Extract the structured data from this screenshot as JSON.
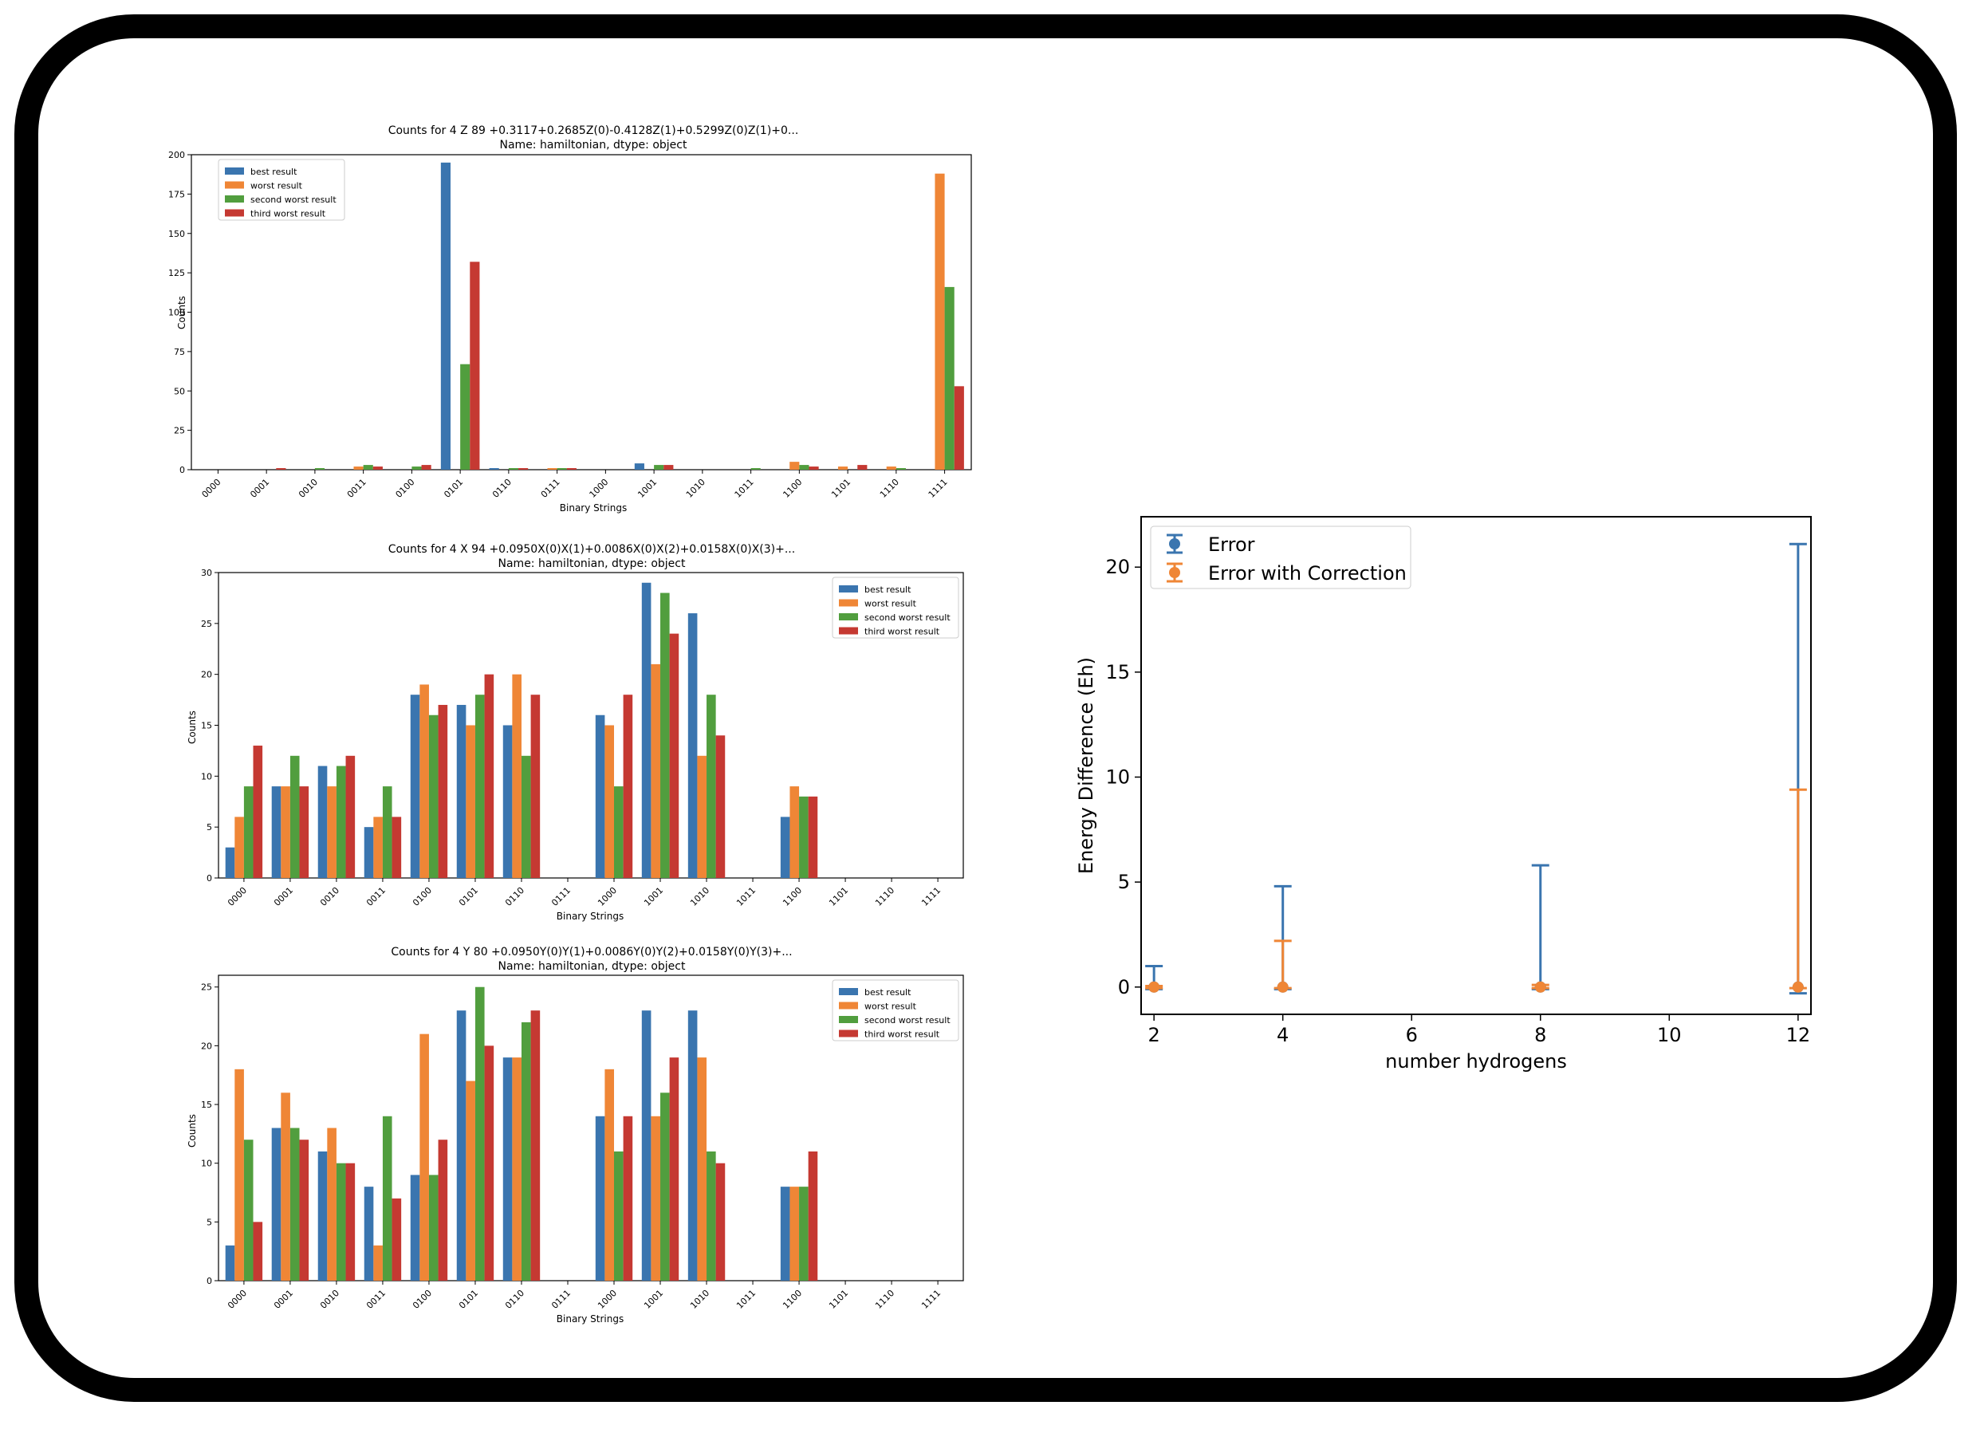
{
  "colors": {
    "best": "#3a75af",
    "worst": "#ef8636",
    "second": "#519e3e",
    "third": "#c53932",
    "error": "#3a75af",
    "corrected": "#ef8636"
  },
  "chart_data": [
    {
      "type": "bar",
      "title": "Counts for 4 Z 89    +0.3117+0.2685Z(0)-0.4128Z(1)+0.5299Z(0)Z(1)+0...",
      "subtitle": "Name: hamiltonian, dtype: object",
      "xlabel": "Binary Strings",
      "ylabel": "Counts",
      "ylim": [
        0,
        200
      ],
      "yticks": [
        0,
        25,
        50,
        75,
        100,
        125,
        150,
        175,
        200
      ],
      "legend_position": "upper left",
      "categories": [
        "0000",
        "0001",
        "0010",
        "0011",
        "0100",
        "0101",
        "0110",
        "0111",
        "1000",
        "1001",
        "1010",
        "1011",
        "1100",
        "1101",
        "1110",
        "1111"
      ],
      "series": [
        {
          "name": "best result",
          "values": [
            0,
            0,
            0,
            0,
            0,
            195,
            1,
            0,
            0,
            4,
            0,
            0,
            0,
            0,
            0,
            0
          ]
        },
        {
          "name": "worst result",
          "values": [
            0,
            0,
            0,
            2,
            0,
            0,
            0,
            1,
            0,
            0,
            0,
            0,
            5,
            2,
            2,
            188
          ]
        },
        {
          "name": "second worst result",
          "values": [
            0,
            0,
            1,
            3,
            2,
            67,
            1,
            1,
            0,
            3,
            0,
            1,
            3,
            0,
            1,
            116
          ]
        },
        {
          "name": "third worst result",
          "values": [
            0,
            1,
            0,
            2,
            3,
            132,
            1,
            1,
            0,
            3,
            0,
            0,
            2,
            3,
            0,
            53
          ]
        }
      ]
    },
    {
      "type": "bar",
      "title": "Counts for 4 X 94    +0.0950X(0)X(1)+0.0086X(0)X(2)+0.0158X(0)X(3)+...",
      "subtitle": "Name: hamiltonian, dtype: object",
      "xlabel": "Binary Strings",
      "ylabel": "Counts",
      "ylim": [
        0,
        30
      ],
      "yticks": [
        0,
        5,
        10,
        15,
        20,
        25,
        30
      ],
      "legend_position": "upper right",
      "categories": [
        "0000",
        "0001",
        "0010",
        "0011",
        "0100",
        "0101",
        "0110",
        "0111",
        "1000",
        "1001",
        "1010",
        "1011",
        "1100",
        "1101",
        "1110",
        "1111"
      ],
      "series": [
        {
          "name": "best result",
          "values": [
            3,
            9,
            11,
            5,
            18,
            17,
            15,
            0,
            16,
            29,
            26,
            0,
            6,
            0,
            0,
            0
          ]
        },
        {
          "name": "worst result",
          "values": [
            6,
            9,
            9,
            6,
            19,
            15,
            20,
            0,
            15,
            21,
            12,
            0,
            9,
            0,
            0,
            0
          ]
        },
        {
          "name": "second worst result",
          "values": [
            9,
            12,
            11,
            9,
            16,
            18,
            12,
            0,
            9,
            28,
            18,
            0,
            8,
            0,
            0,
            0
          ]
        },
        {
          "name": "third worst result",
          "values": [
            13,
            9,
            12,
            6,
            17,
            20,
            18,
            0,
            18,
            24,
            14,
            0,
            8,
            0,
            0,
            0
          ]
        }
      ]
    },
    {
      "type": "bar",
      "title": "Counts for 4 Y 80    +0.0950Y(0)Y(1)+0.0086Y(0)Y(2)+0.0158Y(0)Y(3)+...",
      "subtitle": "Name: hamiltonian, dtype: object",
      "xlabel": "Binary Strings",
      "ylabel": "Counts",
      "ylim": [
        0,
        26
      ],
      "yticks": [
        0,
        5,
        10,
        15,
        20,
        25
      ],
      "legend_position": "upper right",
      "categories": [
        "0000",
        "0001",
        "0010",
        "0011",
        "0100",
        "0101",
        "0110",
        "0111",
        "1000",
        "1001",
        "1010",
        "1011",
        "1100",
        "1101",
        "1110",
        "1111"
      ],
      "series": [
        {
          "name": "best result",
          "values": [
            3,
            13,
            11,
            8,
            9,
            23,
            19,
            0,
            14,
            23,
            23,
            0,
            8,
            0,
            0,
            0
          ]
        },
        {
          "name": "worst result",
          "values": [
            18,
            16,
            13,
            3,
            21,
            17,
            19,
            0,
            18,
            14,
            19,
            0,
            8,
            0,
            0,
            0
          ]
        },
        {
          "name": "second worst result",
          "values": [
            12,
            13,
            10,
            14,
            9,
            25,
            22,
            0,
            11,
            16,
            11,
            0,
            8,
            0,
            0,
            0
          ]
        },
        {
          "name": "third worst result",
          "values": [
            5,
            12,
            10,
            7,
            12,
            20,
            23,
            0,
            14,
            19,
            10,
            0,
            11,
            0,
            0,
            0
          ]
        }
      ]
    },
    {
      "type": "scatter",
      "xlabel": "number hydrogens",
      "ylabel": "Energy Difference (Eh)",
      "xlim": [
        1.8,
        12.2
      ],
      "ylim": [
        -1.3,
        22.4
      ],
      "xticks": [
        2,
        4,
        6,
        8,
        10,
        12
      ],
      "yticks": [
        0,
        5,
        10,
        15,
        20
      ],
      "legend_position": "upper left",
      "series": [
        {
          "name": "Error",
          "x": [
            2,
            4,
            8,
            12
          ],
          "y": [
            0,
            0,
            0,
            0
          ],
          "yerr_low": [
            0.1,
            0.1,
            0.1,
            0.3
          ],
          "yerr_high": [
            1.0,
            4.8,
            5.8,
            21.1
          ]
        },
        {
          "name": "Error with Correction",
          "x": [
            2,
            4,
            8,
            12
          ],
          "y": [
            0,
            0,
            0,
            0
          ],
          "yerr_low": [
            0.05,
            0.05,
            0.05,
            0.05
          ],
          "yerr_high": [
            0.05,
            2.2,
            0.1,
            9.4
          ]
        }
      ]
    }
  ]
}
